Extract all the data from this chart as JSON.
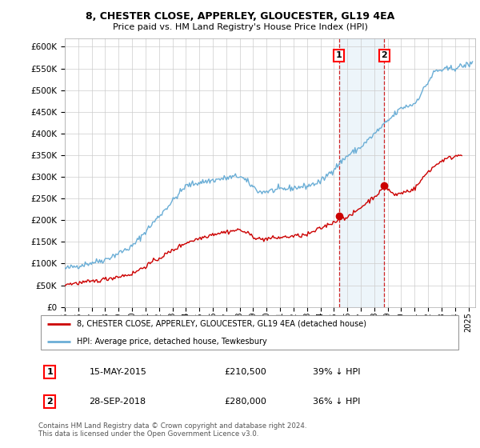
{
  "title": "8, CHESTER CLOSE, APPERLEY, GLOUCESTER, GL19 4EA",
  "subtitle": "Price paid vs. HM Land Registry's House Price Index (HPI)",
  "legend_line1": "8, CHESTER CLOSE, APPERLEY, GLOUCESTER, GL19 4EA (detached house)",
  "legend_line2": "HPI: Average price, detached house, Tewkesbury",
  "footnote": "Contains HM Land Registry data © Crown copyright and database right 2024.\nThis data is licensed under the Open Government Licence v3.0.",
  "sale1_date": "15-MAY-2015",
  "sale1_price": "£210,500",
  "sale1_pct": "39% ↓ HPI",
  "sale2_date": "28-SEP-2018",
  "sale2_price": "£280,000",
  "sale2_pct": "36% ↓ HPI",
  "hpi_color": "#6baed6",
  "price_color": "#cc0000",
  "marker1_x": 2015.37,
  "marker1_y": 210500,
  "marker2_x": 2018.75,
  "marker2_y": 280000,
  "vline1_x": 2015.37,
  "vline2_x": 2018.75,
  "ylim": [
    0,
    620000
  ],
  "xlim_start": 1995.0,
  "xlim_end": 2025.5,
  "yticks": [
    0,
    50000,
    100000,
    150000,
    200000,
    250000,
    300000,
    350000,
    400000,
    450000,
    500000,
    550000,
    600000
  ],
  "xtick_years": [
    1995,
    1996,
    1997,
    1998,
    1999,
    2000,
    2001,
    2002,
    2003,
    2004,
    2005,
    2006,
    2007,
    2008,
    2009,
    2010,
    2011,
    2012,
    2013,
    2014,
    2015,
    2016,
    2017,
    2018,
    2019,
    2020,
    2021,
    2022,
    2023,
    2024,
    2025
  ],
  "background_color": "#ffffff",
  "plot_bg_color": "#ffffff",
  "grid_color": "#cccccc"
}
